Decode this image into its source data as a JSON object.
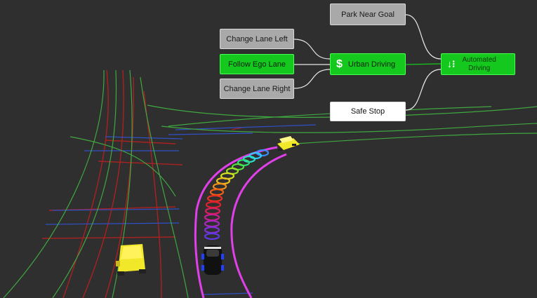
{
  "behavior_tree": {
    "nodes": {
      "park_near_goal": "Park Near Goal",
      "change_lane_left": "Change Lane Left",
      "follow_ego_lane": "Follow Ego Lane",
      "change_lane_right": "Change Lane Right",
      "urban_driving": "Urban Driving",
      "automated_driving_line1": "Automated",
      "automated_driving_line2": "Driving",
      "safe_stop": "Safe Stop"
    },
    "icons": {
      "urban_driving": "$",
      "automated_driving": "↓⁝"
    }
  },
  "colors": {
    "background": "#2f2f2f",
    "active_node": "#14c81e",
    "inactive_node": "#a9a9a9",
    "fallback_node": "#ffffff",
    "drivable_corridor": "#e040e8",
    "lane_boundary_green": "#3fa83f",
    "lane_boundary_red": "#b02020",
    "lane_boundary_blue": "#3050c8",
    "vehicle_yellow": "#f2e82a"
  }
}
